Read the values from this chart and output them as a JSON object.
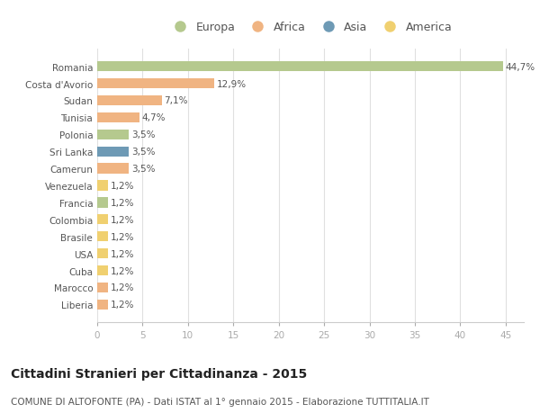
{
  "countries": [
    "Romania",
    "Costa d'Avorio",
    "Sudan",
    "Tunisia",
    "Polonia",
    "Sri Lanka",
    "Camerun",
    "Venezuela",
    "Francia",
    "Colombia",
    "Brasile",
    "USA",
    "Cuba",
    "Marocco",
    "Liberia"
  ],
  "values": [
    44.7,
    12.9,
    7.1,
    4.7,
    3.5,
    3.5,
    3.5,
    1.2,
    1.2,
    1.2,
    1.2,
    1.2,
    1.2,
    1.2,
    1.2
  ],
  "labels": [
    "44,7%",
    "12,9%",
    "7,1%",
    "4,7%",
    "3,5%",
    "3,5%",
    "3,5%",
    "1,2%",
    "1,2%",
    "1,2%",
    "1,2%",
    "1,2%",
    "1,2%",
    "1,2%",
    "1,2%"
  ],
  "colors": [
    "#b5c98e",
    "#f0b482",
    "#f0b482",
    "#f0b482",
    "#b5c98e",
    "#6e9ab5",
    "#f0b482",
    "#f0d070",
    "#b5c98e",
    "#f0d070",
    "#f0d070",
    "#f0d070",
    "#f0d070",
    "#f0b482",
    "#f0b482"
  ],
  "legend_labels": [
    "Europa",
    "Africa",
    "Asia",
    "America"
  ],
  "legend_colors": [
    "#b5c98e",
    "#f0b482",
    "#6e9ab5",
    "#f0d070"
  ],
  "title": "Cittadini Stranieri per Cittadinanza - 2015",
  "subtitle": "COMUNE DI ALTOFONTE (PA) - Dati ISTAT al 1° gennaio 2015 - Elaborazione TUTTITALIA.IT",
  "xlim": [
    0,
    47
  ],
  "xticks": [
    0,
    5,
    10,
    15,
    20,
    25,
    30,
    35,
    40,
    45
  ],
  "background_color": "#ffffff",
  "grid_color": "#e0e0e0",
  "text_color": "#555555",
  "label_fontsize": 7.5,
  "tick_fontsize": 7.5,
  "title_fontsize": 10,
  "subtitle_fontsize": 7.5,
  "legend_fontsize": 9
}
